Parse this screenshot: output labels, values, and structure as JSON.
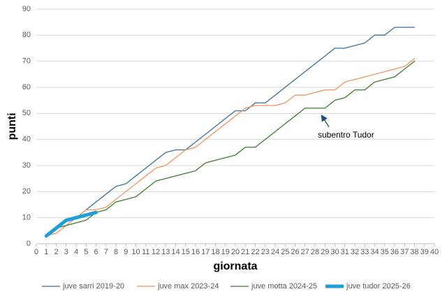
{
  "chart_data": {
    "type": "line",
    "x_label": "giornata",
    "y_label": "punti",
    "x": [
      1,
      2,
      3,
      4,
      5,
      6,
      7,
      8,
      9,
      10,
      11,
      12,
      13,
      14,
      15,
      16,
      17,
      18,
      19,
      20,
      21,
      22,
      23,
      24,
      25,
      26,
      27,
      28,
      29,
      30,
      31,
      32,
      33,
      34,
      35,
      36,
      37,
      38
    ],
    "series": [
      {
        "name": "juve sarri 2019-20",
        "color": "#3a6f9c",
        "width": 1.3,
        "values": [
          3,
          6,
          9,
          10,
          13,
          16,
          19,
          22,
          23,
          26,
          29,
          32,
          35,
          36,
          36,
          39,
          42,
          45,
          48,
          51,
          51,
          54,
          54,
          57,
          60,
          63,
          66,
          69,
          72,
          75,
          75,
          76,
          77,
          80,
          80,
          83,
          83,
          83
        ]
      },
      {
        "name": "juve max 2023-24",
        "color": "#f0955c",
        "width": 1.3,
        "values": [
          3,
          4,
          7,
          10,
          13,
          13,
          14,
          17,
          20,
          23,
          26,
          29,
          30,
          33,
          36,
          37,
          40,
          43,
          46,
          49,
          52,
          53,
          53,
          53,
          54,
          57,
          57,
          58,
          59,
          59,
          62,
          63,
          64,
          65,
          66,
          67,
          68,
          71
        ]
      },
      {
        "name": "juve motta 2024-25",
        "color": "#3b7d2e",
        "width": 1.3,
        "values": [
          3,
          6,
          7,
          8,
          9,
          12,
          13,
          16,
          17,
          18,
          21,
          24,
          25,
          26,
          27,
          28,
          31,
          32,
          33,
          34,
          37,
          37,
          40,
          43,
          46,
          49,
          52,
          52,
          52,
          55,
          56,
          59,
          59,
          62,
          63,
          64,
          67,
          70
        ]
      },
      {
        "name": "juve tudor 2025-26",
        "color": "#1f9fd6",
        "width": 5,
        "values": [
          3,
          6,
          9,
          10,
          11,
          12,
          null,
          null,
          null,
          null,
          null,
          null,
          null,
          null,
          null,
          null,
          null,
          null,
          null,
          null,
          null,
          null,
          null,
          null,
          null,
          null,
          null,
          null,
          null,
          null,
          null,
          null,
          null,
          null,
          null,
          null,
          null,
          null
        ]
      }
    ],
    "annotation": "subentro Tudor",
    "xlim": [
      0,
      40
    ],
    "xticks": [
      0,
      1,
      2,
      3,
      4,
      5,
      6,
      7,
      8,
      9,
      10,
      11,
      12,
      13,
      14,
      15,
      16,
      17,
      18,
      19,
      20,
      21,
      22,
      23,
      24,
      25,
      26,
      27,
      28,
      29,
      30,
      31,
      32,
      33,
      34,
      35,
      36,
      37,
      38,
      39,
      40
    ],
    "ylim": [
      0,
      90
    ],
    "yticks": [
      0,
      10,
      20,
      30,
      40,
      50,
      60,
      70,
      80,
      90
    ],
    "grid": true,
    "legend": "bottom"
  }
}
